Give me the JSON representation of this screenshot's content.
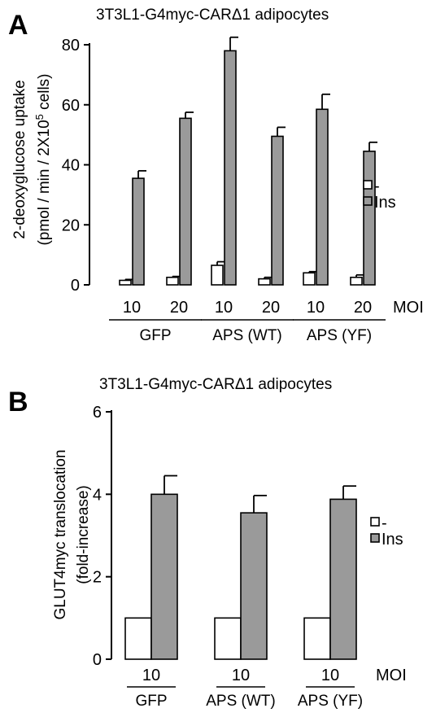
{
  "chart_data": [
    {
      "panel": "A",
      "type": "bar",
      "title": "3T3L1-G4myc-CARΔ1 adipocytes",
      "ylabel_line1": "2-deoxyglucose uptake",
      "ylabel_line2": "(pmol / min / 2X10^5 cells)",
      "ylim": [
        0,
        80
      ],
      "yticks": [
        0,
        20,
        40,
        60,
        80
      ],
      "moi_label": "MOI",
      "groups": [
        {
          "name": "GFP",
          "moi": [
            "10",
            "20"
          ]
        },
        {
          "name": "APS (WT)",
          "moi": [
            "10",
            "20"
          ]
        },
        {
          "name": "APS (YF)",
          "moi": [
            "10",
            "20"
          ]
        }
      ],
      "categories": [
        "GFP 10",
        "GFP 20",
        "APS (WT) 10",
        "APS (WT) 20",
        "APS (YF) 10",
        "APS (YF) 20"
      ],
      "series": [
        {
          "name": "-",
          "color": "#ffffff",
          "values": [
            1.5,
            2.5,
            6.5,
            2.0,
            4.0,
            2.5
          ],
          "errors": [
            0.3,
            0.3,
            1.2,
            0.5,
            0.4,
            0.8
          ]
        },
        {
          "name": "Ins",
          "color": "#9a9a9a",
          "values": [
            35.5,
            55.5,
            78.0,
            49.5,
            58.5,
            44.5
          ],
          "errors": [
            2.5,
            2.0,
            4.5,
            3.0,
            5.0,
            3.0
          ]
        }
      ],
      "legend": {
        "position": "right",
        "entries": [
          "-",
          "Ins"
        ]
      },
      "grid": false
    },
    {
      "panel": "B",
      "type": "bar",
      "title": "3T3L1-G4myc-CARΔ1 adipocytes",
      "ylabel_line1": "GLUT4myc translocation",
      "ylabel_line2": "(fold-increase)",
      "ylim": [
        0,
        6
      ],
      "yticks": [
        0,
        2,
        4,
        6
      ],
      "moi_label": "MOI",
      "groups": [
        {
          "name": "GFP",
          "moi": [
            "10"
          ]
        },
        {
          "name": "APS (WT)",
          "moi": [
            "10"
          ]
        },
        {
          "name": "APS (YF)",
          "moi": [
            "10"
          ]
        }
      ],
      "categories": [
        "GFP 10",
        "APS (WT) 10",
        "APS (YF) 10"
      ],
      "series": [
        {
          "name": "-",
          "color": "#ffffff",
          "values": [
            1.0,
            1.0,
            1.0
          ],
          "errors": [
            0,
            0,
            0
          ]
        },
        {
          "name": "Ins",
          "color": "#9a9a9a",
          "values": [
            4.0,
            3.55,
            3.88
          ],
          "errors": [
            0.45,
            0.42,
            0.32
          ]
        }
      ],
      "legend": {
        "position": "right",
        "entries": [
          "-",
          "Ins"
        ]
      },
      "grid": false
    }
  ]
}
